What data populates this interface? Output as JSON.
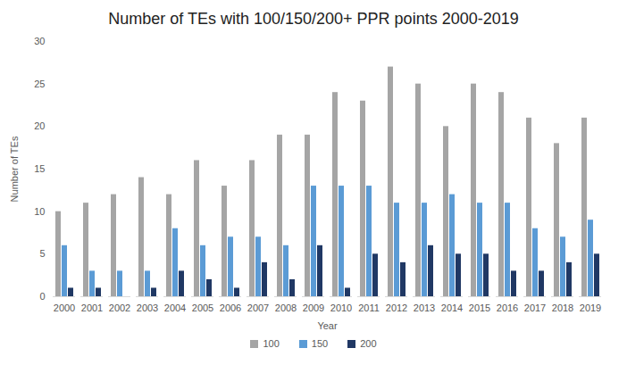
{
  "chart_data": {
    "type": "bar",
    "title": "Number of TEs with 100/150/200+ PPR points 2000-2019",
    "x_label": "Year",
    "y_label": "Number of TEs",
    "categories": [
      "2000",
      "2001",
      "2002",
      "2003",
      "2004",
      "2005",
      "2006",
      "2007",
      "2008",
      "2009",
      "2010",
      "2011",
      "2012",
      "2013",
      "2014",
      "2015",
      "2016",
      "2017",
      "2018",
      "2019"
    ],
    "series": [
      {
        "name": "100",
        "color": "#a5a5a5",
        "values": [
          10,
          11,
          12,
          14,
          12,
          16,
          13,
          16,
          19,
          19,
          24,
          23,
          27,
          25,
          20,
          25,
          24,
          21,
          18,
          21
        ]
      },
      {
        "name": "150",
        "color": "#5b9bd5",
        "values": [
          6,
          3,
          3,
          3,
          8,
          6,
          7,
          7,
          6,
          13,
          13,
          13,
          11,
          11,
          12,
          11,
          11,
          8,
          7,
          9
        ]
      },
      {
        "name": "200",
        "color": "#203864",
        "values": [
          1,
          1,
          0,
          1,
          3,
          2,
          1,
          4,
          2,
          6,
          1,
          5,
          4,
          6,
          5,
          5,
          3,
          3,
          4,
          5
        ]
      }
    ],
    "ylim": [
      0,
      30
    ],
    "yticks": [
      0,
      5,
      10,
      15,
      20,
      25,
      30
    ],
    "grid": false,
    "legend": "bottom"
  }
}
